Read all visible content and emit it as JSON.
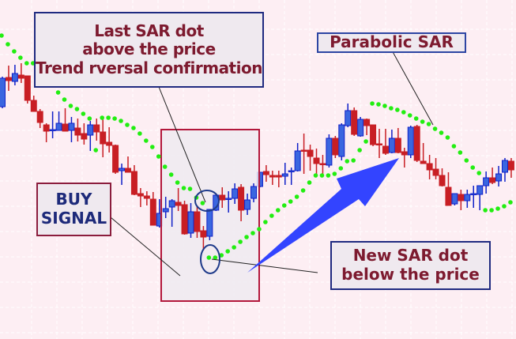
{
  "chart_data": {
    "type": "candlestick",
    "title": "",
    "xlabel": "",
    "ylabel": "",
    "grid": true,
    "ylim": [
      0,
      430
    ],
    "colors": {
      "bullish": "#3a66e0",
      "bullish_edge": "#1020c8",
      "bearish": "#c81e24",
      "sar": "#22ee11",
      "background": "#fdeef3",
      "arrow": "#3344ff"
    },
    "candles": [
      [
        295,
        333,
        293,
        331
      ],
      [
        332,
        347,
        315,
        328
      ],
      [
        327,
        348,
        322,
        337
      ],
      [
        335,
        350,
        325,
        331
      ],
      [
        334,
        334,
        299,
        303
      ],
      [
        303,
        309,
        289,
        289
      ],
      [
        289,
        292,
        268,
        275
      ],
      [
        272,
        274,
        250,
        264
      ],
      [
        265,
        289,
        255,
        266
      ],
      [
        265,
        289,
        265,
        274
      ],
      [
        273,
        293,
        264,
        264
      ],
      [
        265,
        282,
        250,
        274
      ],
      [
        268,
        280,
        251,
        259
      ],
      [
        261,
        274,
        247,
        254
      ],
      [
        259,
        277,
        239,
        272
      ],
      [
        272,
        280,
        252,
        263
      ],
      [
        263,
        280,
        231,
        248
      ],
      [
        250,
        269,
        237,
        246
      ],
      [
        246,
        247,
        210,
        212
      ],
      [
        214,
        223,
        196,
        217
      ],
      [
        217,
        232,
        212,
        212
      ],
      [
        213,
        221,
        183,
        184
      ],
      [
        185,
        192,
        168,
        182
      ],
      [
        182,
        188,
        170,
        179
      ],
      [
        178,
        187,
        145,
        145
      ],
      [
        144,
        178,
        142,
        160
      ],
      [
        162,
        181,
        154,
        166
      ],
      [
        168,
        178,
        143,
        176
      ],
      [
        174,
        192,
        163,
        170
      ],
      [
        171,
        176,
        133,
        134
      ],
      [
        135,
        173,
        129,
        162
      ],
      [
        162,
        170,
        129,
        137
      ],
      [
        138,
        144,
        113,
        130
      ],
      [
        131,
        165,
        126,
        165
      ],
      [
        164,
        183,
        163,
        183
      ],
      [
        183,
        193,
        167,
        177
      ],
      [
        178,
        188,
        161,
        179
      ],
      [
        179,
        198,
        172,
        191
      ],
      [
        193,
        197,
        150,
        164
      ],
      [
        165,
        185,
        158,
        177
      ],
      [
        179,
        198,
        174,
        194
      ],
      [
        194,
        212,
        193,
        212
      ],
      [
        213,
        221,
        200,
        209
      ],
      [
        208,
        214,
        196,
        206
      ],
      [
        208,
        214,
        193,
        206
      ],
      [
        207,
        224,
        196,
        210
      ],
      [
        213,
        218,
        196,
        214
      ],
      [
        214,
        249,
        213,
        239
      ],
      [
        240,
        261,
        210,
        239
      ],
      [
        240,
        247,
        214,
        232
      ],
      [
        230,
        242,
        208,
        223
      ],
      [
        223,
        234,
        208,
        222
      ],
      [
        221,
        260,
        218,
        255
      ],
      [
        255,
        258,
        230,
        234
      ],
      [
        232,
        274,
        227,
        272
      ],
      [
        271,
        299,
        269,
        290
      ],
      [
        290,
        294,
        258,
        260
      ],
      [
        258,
        282,
        257,
        279
      ],
      [
        279,
        280,
        259,
        271
      ],
      [
        272,
        272,
        245,
        247
      ],
      [
        248,
        267,
        230,
        247
      ],
      [
        245,
        267,
        234,
        236
      ],
      [
        237,
        266,
        236,
        255
      ],
      [
        255,
        268,
        236,
        237
      ],
      [
        238,
        243,
        218,
        234
      ],
      [
        234,
        271,
        230,
        269
      ],
      [
        270,
        272,
        225,
        227
      ],
      [
        226,
        249,
        223,
        223
      ],
      [
        223,
        234,
        203,
        215
      ],
      [
        216,
        230,
        203,
        208
      ],
      [
        208,
        217,
        194,
        195
      ],
      [
        193,
        212,
        170,
        170
      ],
      [
        172,
        185,
        170,
        185
      ],
      [
        184,
        190,
        164,
        176
      ],
      [
        176,
        190,
        167,
        184
      ],
      [
        184,
        195,
        167,
        185
      ],
      [
        184,
        195,
        164,
        195
      ],
      [
        195,
        213,
        185,
        205
      ],
      [
        205,
        218,
        197,
        199
      ],
      [
        201,
        220,
        194,
        210
      ],
      [
        212,
        230,
        200,
        227
      ],
      [
        226,
        230,
        205,
        215
      ]
    ],
    "candle_format": [
      "open",
      "high",
      "low",
      "close"
    ],
    "sar": [
      385,
      374,
      365,
      357,
      350,
      350,
      342,
      333,
      323,
      313,
      304,
      296,
      292,
      286,
      280,
      240,
      281,
      281,
      280,
      277,
      272,
      268,
      261,
      252,
      244,
      232,
      219,
      209,
      199,
      192,
      191,
      180,
      173,
      104,
      104,
      107,
      112,
      117,
      124,
      130,
      135,
      140,
      149,
      157,
      164,
      170,
      175,
      181,
      189,
      199,
      208,
      208,
      208,
      210,
      217,
      226,
      227,
      240,
      251,
      299,
      298,
      296,
      293,
      291,
      288,
      284,
      280,
      276,
      273,
      267,
      262,
      256,
      245,
      237,
      227,
      218,
      211,
      164,
      164,
      166,
      169,
      174
    ],
    "annotations": {
      "last_sar": [
        "Last SAR dot",
        "above the price",
        "Trend rversal confirmation"
      ],
      "parabolic_sar": "Parabolic SAR",
      "buy_signal": [
        "BUY",
        "SIGNAL"
      ],
      "new_sar": [
        "New SAR dot",
        "below the price"
      ]
    }
  }
}
